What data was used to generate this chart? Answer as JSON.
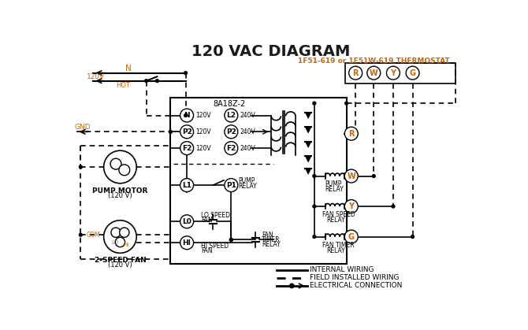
{
  "title": "120 VAC DIAGRAM",
  "title_color": "#1a1a1a",
  "title_fontsize": 14,
  "bg_color": "#ffffff",
  "thermostat_label": "1F51-619 or 1F51W-619 THERMOSTAT",
  "thermostat_color": "#cc6600",
  "controller_label": "8A18Z-2",
  "legend_items": [
    {
      "label": "INTERNAL WIRING"
    },
    {
      "label": "FIELD INSTALLED WIRING"
    },
    {
      "label": "ELECTRICAL CONNECTION"
    }
  ],
  "orange_color": "#cc6600",
  "black_color": "#000000"
}
